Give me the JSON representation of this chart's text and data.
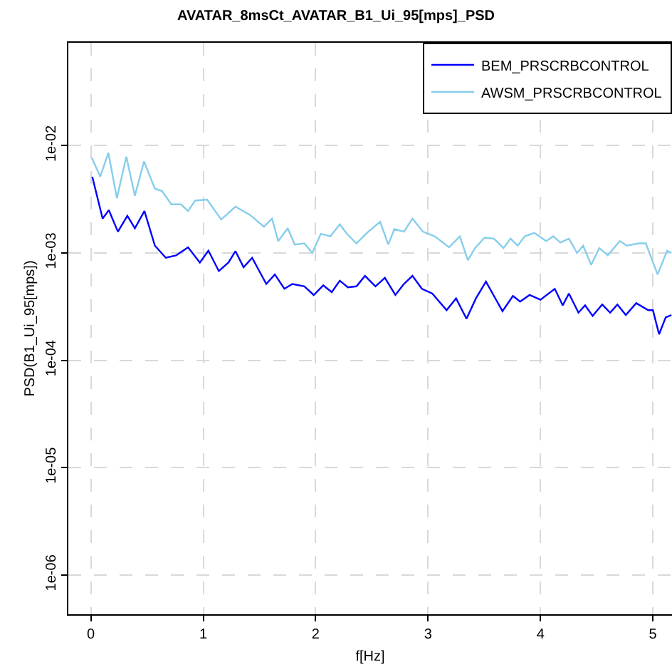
{
  "chart_data": {
    "type": "line",
    "title": "AVATAR_8msCt_AVATAR_B1_Ui_95[mps]_PSD",
    "xlabel": "f[Hz]",
    "ylabel": "PSD(B1_Ui_95[mps])",
    "log": true,
    "grid": true,
    "legend": "top right",
    "line_style": "solid",
    "marker": "none",
    "xlim": [
      -0.2,
      5.17
    ],
    "xticks": [
      0,
      1,
      2,
      3,
      4,
      5
    ],
    "ylim": [
      4.3e-07,
      0.091
    ],
    "yticks": [
      {
        "value": 0.01,
        "label": "1e-02"
      },
      {
        "value": 0.001,
        "label": "1e-03"
      },
      {
        "value": 0.0001,
        "label": "1e-04"
      },
      {
        "value": 1e-05,
        "label": "1e-05"
      },
      {
        "value": 1e-06,
        "label": "1e-06"
      }
    ],
    "series": [
      {
        "name": "BEM_PRSCRBCONTROL",
        "color": "#0000ff",
        "x": [
          0.013,
          0.105,
          0.16,
          0.241,
          0.325,
          0.392,
          0.477,
          0.57,
          0.667,
          0.759,
          0.865,
          0.97,
          1.046,
          1.139,
          1.224,
          1.287,
          1.359,
          1.435,
          1.561,
          1.637,
          1.722,
          1.793,
          1.899,
          1.983,
          2.068,
          2.143,
          2.215,
          2.287,
          2.363,
          2.439,
          2.532,
          2.616,
          2.709,
          2.785,
          2.861,
          2.945,
          3.038,
          3.165,
          3.249,
          3.342,
          3.426,
          3.515,
          3.586,
          3.662,
          3.755,
          3.819,
          3.903,
          4.0,
          4.127,
          4.198,
          4.253,
          4.338,
          4.397,
          4.464,
          4.549,
          4.62,
          4.684,
          4.759,
          4.852,
          4.958,
          5.0,
          5.055,
          5.114,
          5.165
        ],
        "values": [
          0.00514,
          0.00209,
          0.00251,
          0.00158,
          0.00222,
          0.0017,
          0.00246,
          0.00117,
          0.000903,
          0.00095,
          0.00113,
          0.000815,
          0.00105,
          0.000678,
          0.000815,
          0.00104,
          0.000736,
          0.000903,
          0.000514,
          0.000631,
          0.000464,
          0.000514,
          0.000489,
          0.000406,
          0.000499,
          0.000432,
          0.000552,
          0.000479,
          0.000489,
          0.000612,
          0.000489,
          0.000587,
          0.000406,
          0.000514,
          0.000612,
          0.000464,
          0.000419,
          0.000293,
          0.000378,
          0.000244,
          0.000378,
          0.000541,
          0.000398,
          0.000287,
          0.000398,
          0.000352,
          0.000406,
          0.000367,
          0.000464,
          0.000325,
          0.000419,
          0.000278,
          0.000325,
          0.000259,
          0.000331,
          0.000278,
          0.000331,
          0.000264,
          0.000341,
          0.000293,
          0.000293,
          0.000175,
          0.000251,
          0.000264
        ]
      },
      {
        "name": "AWSM_PRSCRBCONTROL",
        "color": "#87ceeb",
        "x": [
          0.008,
          0.084,
          0.156,
          0.232,
          0.316,
          0.392,
          0.473,
          0.57,
          0.633,
          0.717,
          0.802,
          0.865,
          0.928,
          1.034,
          1.16,
          1.287,
          1.414,
          1.54,
          1.612,
          1.667,
          1.751,
          1.814,
          1.899,
          1.97,
          2.046,
          2.131,
          2.215,
          2.278,
          2.363,
          2.468,
          2.574,
          2.646,
          2.7,
          2.785,
          2.861,
          2.954,
          3.059,
          3.186,
          3.283,
          3.354,
          3.418,
          3.502,
          3.586,
          3.671,
          3.734,
          3.797,
          3.861,
          3.945,
          4.051,
          4.114,
          4.177,
          4.253,
          4.325,
          4.38,
          4.451,
          4.523,
          4.599,
          4.705,
          4.768,
          4.873,
          4.937,
          5.042,
          5.127,
          5.165
        ],
        "values": [
          0.00774,
          0.00514,
          0.00858,
          0.00324,
          0.0079,
          0.00341,
          0.00713,
          0.00398,
          0.00378,
          0.00284,
          0.00284,
          0.00246,
          0.00308,
          0.00315,
          0.00205,
          0.0027,
          0.00227,
          0.00176,
          0.00209,
          0.00129,
          0.0017,
          0.0012,
          0.00123,
          0.001,
          0.00151,
          0.00143,
          0.00185,
          0.00151,
          0.00123,
          0.00158,
          0.00195,
          0.0012,
          0.00167,
          0.00158,
          0.00209,
          0.00158,
          0.00143,
          0.00113,
          0.00143,
          0.000858,
          0.00111,
          0.00139,
          0.00136,
          0.00111,
          0.00136,
          0.00117,
          0.00143,
          0.00154,
          0.00129,
          0.00143,
          0.00125,
          0.00136,
          0.001,
          0.00117,
          0.000774,
          0.00111,
          0.00095,
          0.00129,
          0.00117,
          0.00123,
          0.00123,
          0.000631,
          0.00105,
          0.001
        ]
      }
    ]
  }
}
